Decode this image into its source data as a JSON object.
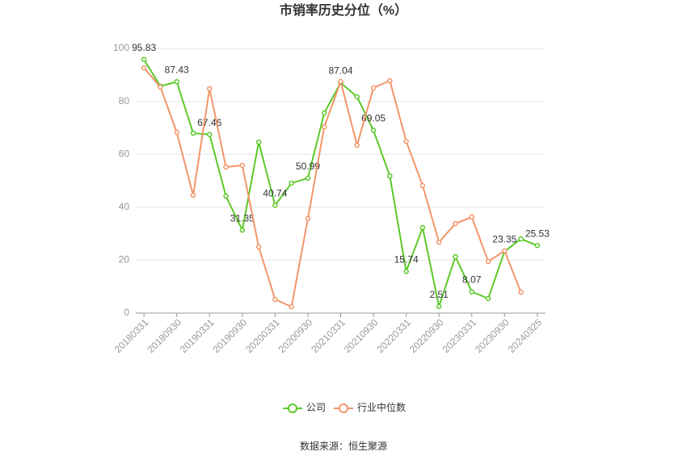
{
  "chart_data": {
    "type": "line",
    "title": "市销率历史分位（%）",
    "categories": [
      "20180331",
      null,
      "20180930",
      null,
      "20190331",
      null,
      "20190930",
      null,
      "20200331",
      null,
      "20200930",
      null,
      "20210331",
      null,
      "20210930",
      null,
      "20220331",
      null,
      "20220930",
      null,
      "20230331",
      null,
      "20230930",
      null,
      "20240325"
    ],
    "series": [
      {
        "name": "公司",
        "color": "#5cc928",
        "values": [
          95.83,
          85.7,
          87.43,
          68,
          67.46,
          44.2,
          31.35,
          64.6,
          40.74,
          49.1,
          50.99,
          75.6,
          87.04,
          81.7,
          69.05,
          51.8,
          15.74,
          32.3,
          2.51,
          21.3,
          8.07,
          5.5,
          23.35,
          28.0,
          25.53
        ],
        "value_labels": [
          "95.83",
          null,
          "87.43",
          null,
          "67.46",
          null,
          "31.35",
          null,
          "40.74",
          null,
          "50.99",
          null,
          "87.04",
          null,
          "69.05",
          null,
          "15.74",
          null,
          "2.51",
          null,
          "8.07",
          null,
          "23.35",
          null,
          "25.53"
        ]
      },
      {
        "name": "行业中位数",
        "color": "#f4956a",
        "values": [
          92.7,
          85.4,
          68.3,
          44.5,
          84.8,
          55.2,
          55.8,
          25,
          5.2,
          2.4,
          35.7,
          70.4,
          87.5,
          63.4,
          85.1,
          87.8,
          64.9,
          48.2,
          26.8,
          33.8,
          36.3,
          19.5,
          23.5,
          7.9,
          null
        ]
      }
    ],
    "ylim": [
      0,
      100
    ],
    "yticks": [
      0,
      20,
      40,
      60,
      80,
      100
    ],
    "grid": true,
    "source": "数据来源：恒生聚源"
  }
}
